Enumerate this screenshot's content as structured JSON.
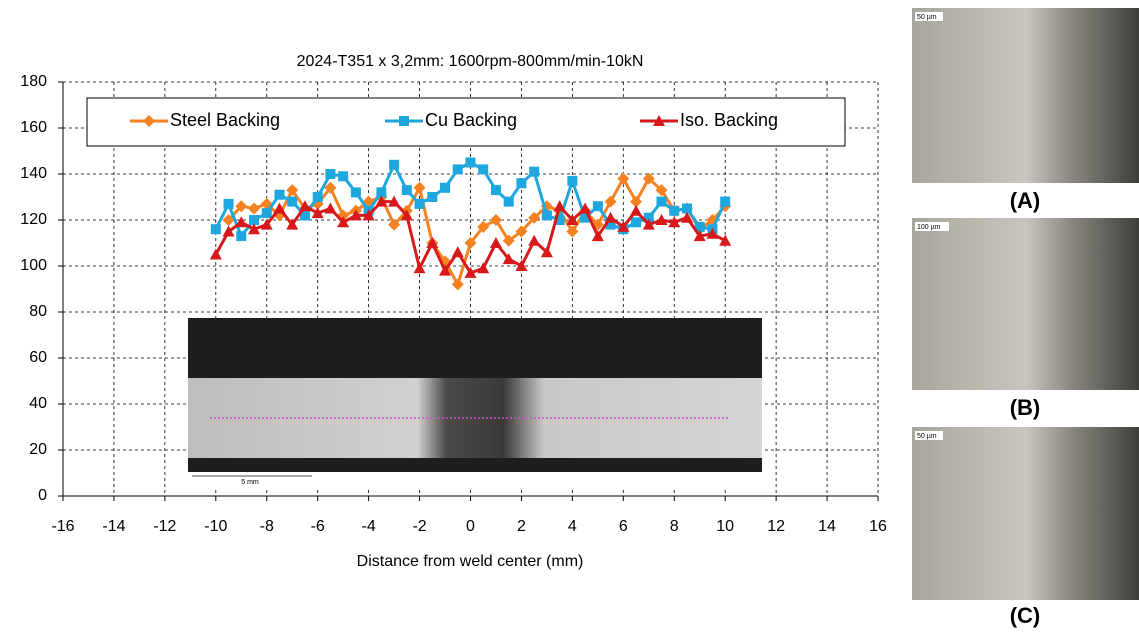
{
  "chart_data": {
    "type": "line",
    "title": "2024-T351 x 3,2mm: 1600rpm-800mm/min-10kN",
    "x_label": "Distance from weld center (mm)",
    "x": [
      -10,
      -9.5,
      -9,
      -8.5,
      -8,
      -7.5,
      -7,
      -6.5,
      -6,
      -5.5,
      -5,
      -4.5,
      -4,
      -3.5,
      -3,
      -2.5,
      -2,
      -1.5,
      -1,
      -0.5,
      0,
      0.5,
      1,
      1.5,
      2,
      2.5,
      3,
      3.5,
      4,
      4.5,
      5,
      5.5,
      6,
      6.5,
      7,
      7.5,
      8,
      8.5,
      9,
      9.5,
      10
    ],
    "series": [
      {
        "name": "Steel Backing",
        "color": "#f58220",
        "marker": "diamond",
        "values": [
          null,
          120,
          126,
          125,
          127,
          122,
          133,
          125,
          127,
          134,
          122,
          124,
          128,
          130,
          118,
          124,
          134,
          110,
          102,
          92,
          110,
          117,
          120,
          111,
          115,
          121,
          126,
          124,
          115,
          124,
          118,
          128,
          138,
          128,
          138,
          133,
          124,
          125,
          116,
          120,
          126
        ]
      },
      {
        "name": "Cu Backing",
        "color": "#1ea7de",
        "marker": "square",
        "values": [
          116,
          127,
          113,
          120,
          123,
          131,
          128,
          122,
          130,
          140,
          139,
          132,
          124,
          132,
          144,
          133,
          127,
          130,
          134,
          142,
          145,
          142,
          133,
          128,
          136,
          141,
          122,
          120,
          137,
          121,
          126,
          118,
          116,
          119,
          121,
          128,
          124,
          125,
          117,
          116,
          128
        ]
      },
      {
        "name": "Iso. Backing",
        "color": "#d7191c",
        "marker": "triangle",
        "values": [
          105,
          115,
          119,
          116,
          118,
          125,
          118,
          126,
          123,
          125,
          119,
          122,
          122,
          128,
          128,
          122,
          99,
          110,
          98,
          106,
          97,
          99,
          110,
          103,
          100,
          111,
          106,
          126,
          120,
          125,
          113,
          121,
          117,
          124,
          118,
          120,
          119,
          121,
          113,
          114,
          111
        ]
      }
    ],
    "xlim": [
      -16,
      16
    ],
    "xticks": [
      -16,
      -14,
      -12,
      -10,
      -8,
      -6,
      -4,
      -2,
      0,
      2,
      4,
      6,
      8,
      10,
      12,
      14,
      16
    ],
    "ylim": [
      0,
      180
    ],
    "yticks": [
      0,
      20,
      40,
      60,
      80,
      100,
      120,
      140,
      160,
      180
    ],
    "grid": true,
    "legend": "top"
  },
  "inset": {
    "scale": "5 mm"
  },
  "panels": [
    {
      "label": "(A)",
      "scale": "50 µm"
    },
    {
      "label": "(B)",
      "scale": "100 µm"
    },
    {
      "label": "(C)",
      "scale": "50 µm"
    }
  ]
}
